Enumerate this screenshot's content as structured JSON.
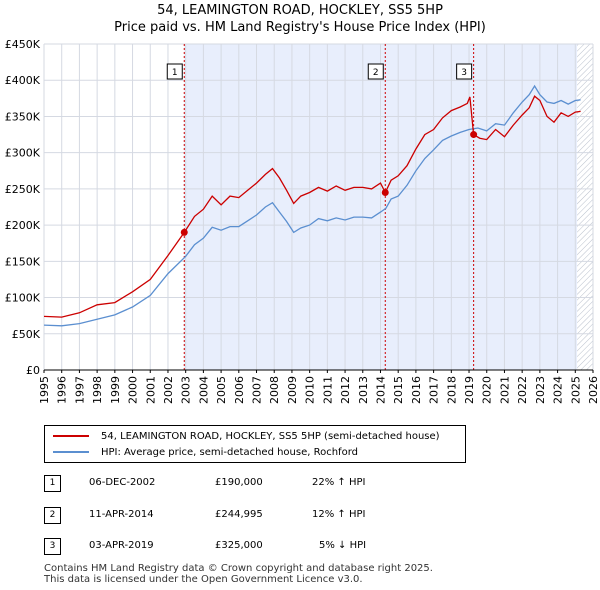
{
  "header": {
    "title_line1": "54, LEAMINGTON ROAD, HOCKLEY, SS5 5HP",
    "title_line2": "Price paid vs. HM Land Registry's House Price Index (HPI)"
  },
  "colors": {
    "price_line": "#cc0000",
    "hpi_line": "#5b8fd0",
    "shade": "#e8eefc",
    "grid": "#d5d9e2",
    "marker": "#cc0000"
  },
  "chart_data": {
    "type": "line",
    "title": "54, LEAMINGTON ROAD, HOCKLEY, SS5 5HP",
    "subtitle": "Price paid vs. HM Land Registry's House Price Index (HPI)",
    "xlim": [
      1995,
      2026
    ],
    "ylim": [
      0,
      450000
    ],
    "x_ticks": [
      1995,
      1996,
      1997,
      1998,
      1999,
      2000,
      2001,
      2002,
      2003,
      2004,
      2005,
      2006,
      2007,
      2008,
      2009,
      2010,
      2011,
      2012,
      2013,
      2014,
      2015,
      2016,
      2017,
      2018,
      2019,
      2020,
      2021,
      2022,
      2023,
      2024,
      2025,
      2026
    ],
    "y_ticks": [
      0,
      50000,
      100000,
      150000,
      200000,
      250000,
      300000,
      350000,
      400000,
      450000
    ],
    "y_tick_labels": [
      "£0",
      "£50K",
      "£100K",
      "£150K",
      "£200K",
      "£250K",
      "£300K",
      "£350K",
      "£400K",
      "£450K"
    ],
    "shaded_from": 2002.92,
    "hatch_from": 2025.1,
    "series": [
      {
        "name": "54, LEAMINGTON ROAD, HOCKLEY, SS5 5HP (semi-detached house)",
        "x": [
          1995.0,
          1996.0,
          1997.0,
          1998.0,
          1999.0,
          2000.0,
          2001.0,
          2002.0,
          2002.92,
          2003.5,
          2004.0,
          2004.5,
          2005.0,
          2005.5,
          2006.0,
          2006.5,
          2007.0,
          2007.5,
          2007.9,
          2008.3,
          2008.7,
          2009.1,
          2009.5,
          2010.0,
          2010.5,
          2011.0,
          2011.5,
          2012.0,
          2012.5,
          2013.0,
          2013.5,
          2014.0,
          2014.27,
          2014.6,
          2015.0,
          2015.5,
          2016.0,
          2016.5,
          2017.0,
          2017.5,
          2018.0,
          2018.5,
          2018.9,
          2019.05,
          2019.26,
          2019.6,
          2020.0,
          2020.5,
          2021.0,
          2021.5,
          2022.0,
          2022.4,
          2022.7,
          2023.0,
          2023.4,
          2023.8,
          2024.2,
          2024.6,
          2025.0,
          2025.3
        ],
        "y": [
          74000,
          73000,
          79000,
          90000,
          93000,
          108000,
          125000,
          158000,
          190000,
          212000,
          222000,
          240000,
          228000,
          240000,
          238000,
          248000,
          258000,
          270000,
          278000,
          265000,
          248000,
          230000,
          240000,
          245000,
          252000,
          247000,
          254000,
          248000,
          252000,
          252000,
          250000,
          258000,
          244995,
          262000,
          268000,
          282000,
          305000,
          325000,
          332000,
          348000,
          358000,
          363000,
          368000,
          377000,
          325000,
          320000,
          318000,
          332000,
          322000,
          338000,
          352000,
          362000,
          378000,
          372000,
          350000,
          342000,
          355000,
          350000,
          356000,
          357000
        ]
      },
      {
        "name": "HPI: Average price, semi-detached house, Rochford",
        "x": [
          1995.0,
          1996.0,
          1997.0,
          1998.0,
          1999.0,
          2000.0,
          2001.0,
          2002.0,
          2003.0,
          2003.5,
          2004.0,
          2004.5,
          2005.0,
          2005.5,
          2006.0,
          2006.5,
          2007.0,
          2007.5,
          2007.9,
          2008.3,
          2008.7,
          2009.1,
          2009.5,
          2010.0,
          2010.5,
          2011.0,
          2011.5,
          2012.0,
          2012.5,
          2013.0,
          2013.5,
          2014.0,
          2014.3,
          2014.6,
          2015.0,
          2015.5,
          2016.0,
          2016.5,
          2017.0,
          2017.5,
          2018.0,
          2018.5,
          2019.0,
          2019.5,
          2020.0,
          2020.5,
          2021.0,
          2021.5,
          2022.0,
          2022.4,
          2022.7,
          2023.0,
          2023.4,
          2023.8,
          2024.2,
          2024.6,
          2025.0,
          2025.3
        ],
        "y": [
          62000,
          61000,
          64000,
          70000,
          76000,
          87000,
          103000,
          133000,
          157000,
          173000,
          182000,
          197000,
          193000,
          198000,
          198000,
          206000,
          214000,
          225000,
          231000,
          218000,
          205000,
          190000,
          196000,
          200000,
          209000,
          206000,
          210000,
          207000,
          211000,
          211000,
          210000,
          218000,
          223000,
          236000,
          240000,
          255000,
          275000,
          292000,
          304000,
          317000,
          323000,
          328000,
          332000,
          334000,
          330000,
          340000,
          338000,
          355000,
          370000,
          380000,
          392000,
          380000,
          370000,
          368000,
          372000,
          367000,
          372000,
          373000
        ]
      }
    ],
    "sales": [
      {
        "label": "1",
        "x": 2002.92,
        "y": 190000
      },
      {
        "label": "2",
        "x": 2014.27,
        "y": 244995
      },
      {
        "label": "3",
        "x": 2019.26,
        "y": 325000
      }
    ]
  },
  "legend": {
    "price_label": "54, LEAMINGTON ROAD, HOCKLEY, SS5 5HP (semi-detached house)",
    "hpi_label": "HPI: Average price, semi-detached house, Rochford"
  },
  "transactions": [
    {
      "num": "1",
      "date": "06-DEC-2002",
      "price": "£190,000",
      "hpi": "22% ↑ HPI"
    },
    {
      "num": "2",
      "date": "11-APR-2014",
      "price": "£244,995",
      "hpi": "12% ↑ HPI"
    },
    {
      "num": "3",
      "date": "03-APR-2019",
      "price": "£325,000",
      "hpi": "5% ↓ HPI"
    }
  ],
  "footer": {
    "line1": "Contains HM Land Registry data © Crown copyright and database right 2025.",
    "line2": "This data is licensed under the Open Government Licence v3.0."
  }
}
